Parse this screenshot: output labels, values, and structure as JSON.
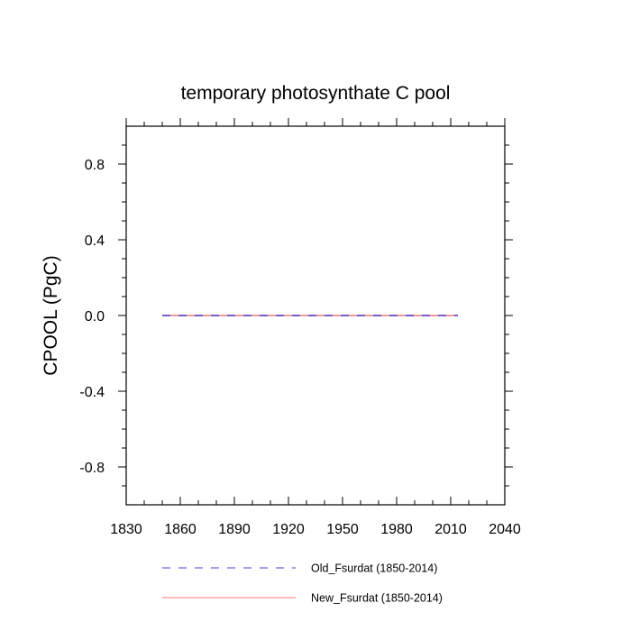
{
  "chart_data": {
    "type": "line",
    "title": "temporary photosynthate C pool",
    "xlabel": "",
    "ylabel": "CPOOL  (PgC)",
    "xlim": [
      1830,
      2040
    ],
    "ylim": [
      -1.0,
      1.0
    ],
    "xticks": [
      1830,
      1860,
      1890,
      1920,
      1950,
      1980,
      2010,
      2040
    ],
    "yticks": [
      -0.8,
      -0.4,
      0.0,
      0.4,
      0.8
    ],
    "x_tick_labels": [
      "1830",
      "1860",
      "1890",
      "1920",
      "1950",
      "1980",
      "2010",
      "2040"
    ],
    "y_tick_labels": [
      "-0.8",
      "-0.4",
      "0.0",
      "0.4",
      "0.8"
    ],
    "grid": false,
    "legend_position": "bottom",
    "series": [
      {
        "name": "Old_Fsurdat (1850-2014)",
        "color": "#4a3fd6",
        "style": "dashed",
        "x": [
          1850,
          2014
        ],
        "y": [
          0.0,
          0.0
        ]
      },
      {
        "name": "New_Fsurdat (1850-2014)",
        "color": "#f07878",
        "style": "solid",
        "x": [
          1850,
          2014
        ],
        "y": [
          0.0,
          0.0
        ]
      }
    ]
  }
}
